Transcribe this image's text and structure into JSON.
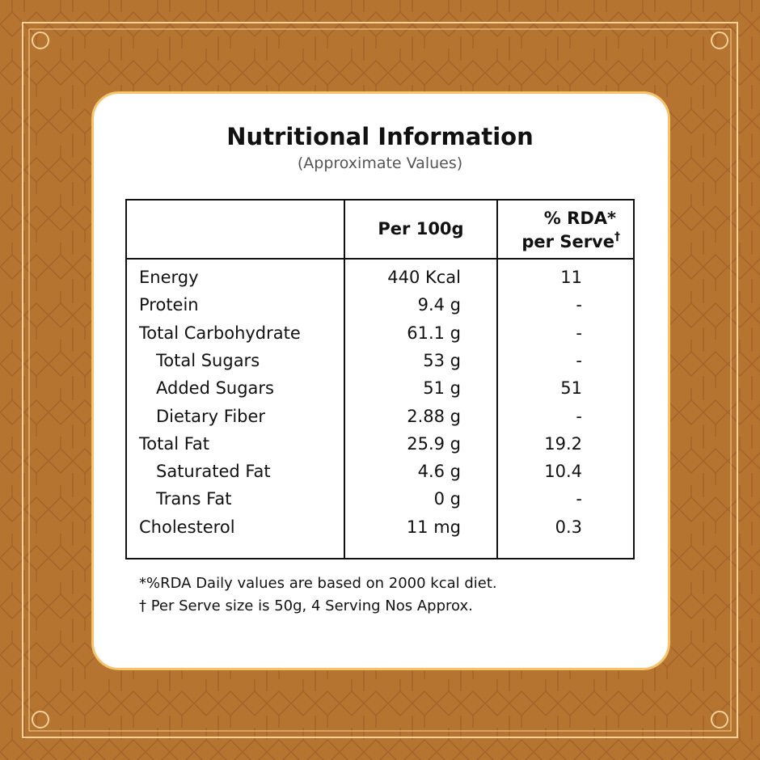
{
  "title": "Nutritional Information",
  "subtitle": "(Approximate Values)",
  "table": {
    "headers": {
      "per100": "Per 100g",
      "rda_line1": "% RDA*",
      "rda_line2": "per Serve",
      "rda_mark": "†"
    },
    "rows": [
      {
        "name": "Energy",
        "per100": "440 Kcal",
        "rda": "11",
        "indent": false
      },
      {
        "name": "Protein",
        "per100": "9.4 g",
        "rda": "-",
        "indent": false
      },
      {
        "name": "Total Carbohydrate",
        "per100": "61.1 g",
        "rda": "-",
        "indent": false
      },
      {
        "name": "Total Sugars",
        "per100": "53 g",
        "rda": "-",
        "indent": true
      },
      {
        "name": "Added Sugars",
        "per100": "51 g",
        "rda": "51",
        "indent": true
      },
      {
        "name": "Dietary Fiber",
        "per100": "2.88 g",
        "rda": "-",
        "indent": true
      },
      {
        "name": "Total Fat",
        "per100": "25.9 g",
        "rda": "19.2",
        "indent": false
      },
      {
        "name": "Saturated Fat",
        "per100": "4.6 g",
        "rda": "10.4",
        "indent": true
      },
      {
        "name": "Trans Fat",
        "per100": "0 g",
        "rda": "-",
        "indent": true
      },
      {
        "name": "Cholesterol",
        "per100": "11 mg",
        "rda": "0.3",
        "indent": false
      }
    ]
  },
  "footnotes": [
    "*%RDA Daily values are based on 2000 kcal diet.",
    "† Per Serve size is 50g, 4 Serving Nos Approx."
  ]
}
